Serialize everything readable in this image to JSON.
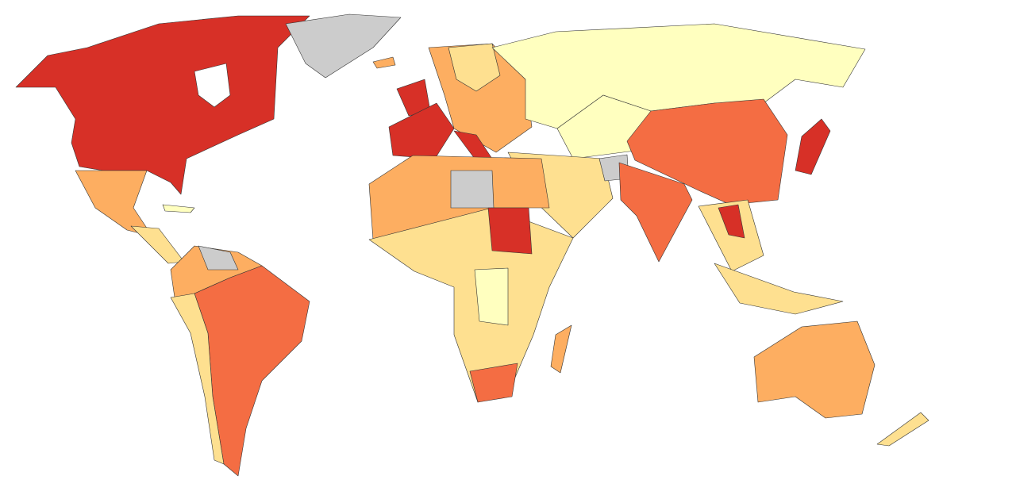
{
  "map": {
    "palette": [
      "#d73027",
      "#f46d43",
      "#fdae61",
      "#fee090",
      "#ffffbf",
      "#cccccc"
    ]
  }
}
